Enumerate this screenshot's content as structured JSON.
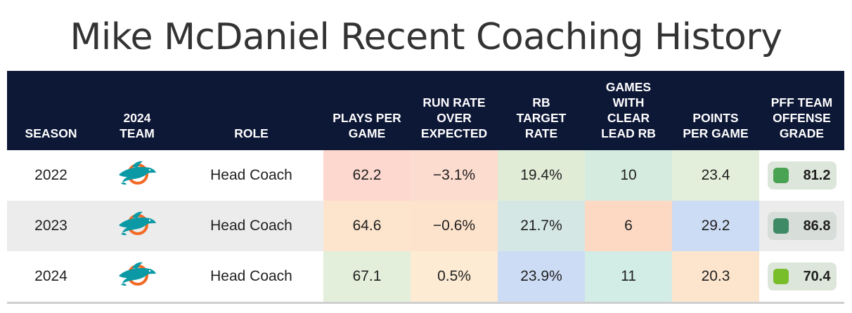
{
  "title": "Mike McDaniel Recent Coaching History",
  "columns": {
    "season": "SEASON",
    "team": "2024\nTEAM",
    "role": "ROLE",
    "plays": "PLAYS PER\nGAME",
    "rroe": "RUN RATE\nOVER\nEXPECTED",
    "rbt": "RB\nTARGET\nRATE",
    "games": "GAMES\nWITH\nCLEAR\nLEAD RB",
    "ppg": "POINTS\nPER GAME",
    "grade": "PFF TEAM\nOFFENSE\nGRADE"
  },
  "team_logo_icon": "miami-dolphins-logo-icon",
  "rows": [
    {
      "season": "2022",
      "role": "Head Coach",
      "plays": "62.2",
      "plays_color": "#fdd8cf",
      "rroe": "−3.1%",
      "rroe_color": "#fddcd0",
      "rbt": "19.4%",
      "rbt_color": "#e1ecd7",
      "games": "10",
      "games_color": "#d5ebe0",
      "ppg": "23.4",
      "ppg_color": "#e3efdb",
      "grade": "81.2",
      "grade_color": "#4aa352"
    },
    {
      "season": "2023",
      "role": "Head Coach",
      "plays": "64.6",
      "plays_color": "#fde5cd",
      "rroe": "−0.6%",
      "rroe_color": "#fde3cc",
      "rbt": "21.7%",
      "rbt_color": "#d5e7e4",
      "games": "6",
      "games_color": "#fdd9c4",
      "ppg": "29.2",
      "ppg_color": "#cddcf5",
      "grade": "86.8",
      "grade_color": "#3f8a66"
    },
    {
      "season": "2024",
      "role": "Head Coach",
      "plays": "67.1",
      "plays_color": "#e3efdb",
      "rroe": "0.5%",
      "rroe_color": "#fdebd3",
      "rbt": "23.9%",
      "rbt_color": "#cddcf5",
      "games": "11",
      "games_color": "#d2ece6",
      "ppg": "20.3",
      "ppg_color": "#fde5cd",
      "grade": "70.4",
      "grade_color": "#78bd2a"
    }
  ]
}
